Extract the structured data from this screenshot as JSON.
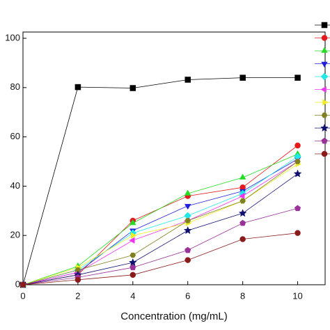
{
  "chart_data": {
    "type": "line",
    "x_label": "Concentration (mg/mL)",
    "x": [
      0,
      2,
      4,
      6,
      8,
      10
    ],
    "xlim": [
      0,
      11
    ],
    "xticks": [
      0,
      2,
      4,
      6,
      8,
      10
    ],
    "ylim": [
      0,
      100
    ],
    "yticks": [
      0,
      20,
      40,
      60,
      80,
      100
    ],
    "legend": "top-right",
    "series": [
      {
        "color": "#000000",
        "marker": "square",
        "values": [
          0,
          80.2,
          79.8,
          83.2,
          84,
          84
        ]
      },
      {
        "color": "#e41a1c",
        "marker": "circle",
        "values": [
          0,
          4,
          26,
          36,
          39.5,
          56.5
        ]
      },
      {
        "color": "#22dd22",
        "marker": "triangle-up",
        "values": [
          0,
          7.5,
          25,
          37,
          43.5,
          53
        ]
      },
      {
        "color": "#2020dd",
        "marker": "triangle-down",
        "values": [
          0,
          5,
          22,
          32,
          38,
          51
        ]
      },
      {
        "color": "#22e8e8",
        "marker": "diamond",
        "values": [
          0,
          6,
          21,
          28,
          37,
          52
        ]
      },
      {
        "color": "#ee33ee",
        "marker": "triangle-left",
        "values": [
          0,
          5,
          18,
          26,
          36,
          50
        ]
      },
      {
        "color": "#eeee22",
        "marker": "triangle-right",
        "values": [
          0,
          7,
          20,
          25,
          34,
          49
        ]
      },
      {
        "color": "#808020",
        "marker": "hexagon",
        "values": [
          0,
          6,
          12,
          26,
          34,
          50
        ]
      },
      {
        "color": "#101070",
        "marker": "star",
        "values": [
          0,
          4,
          9,
          22,
          29,
          45
        ]
      },
      {
        "color": "#993399",
        "marker": "pentagon",
        "values": [
          0,
          3,
          7,
          14,
          25,
          31
        ]
      },
      {
        "color": "#8b1a1a",
        "marker": "circle",
        "values": [
          0,
          2,
          4,
          10,
          18.5,
          21
        ]
      }
    ]
  }
}
